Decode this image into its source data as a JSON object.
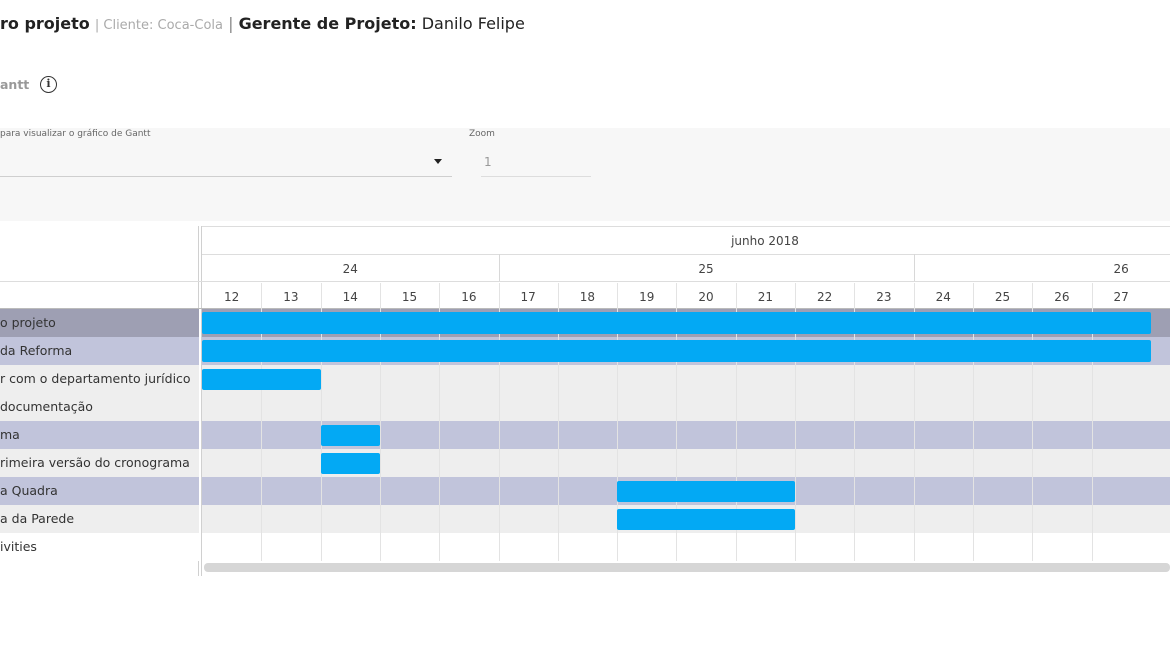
{
  "header": {
    "project": "ro projeto",
    "client_prefix": "Cliente: ",
    "client": "Coca-Cola",
    "manager_label": "Gerente de Projeto:",
    "manager": "Danilo Felipe"
  },
  "section": {
    "title": "antt",
    "info_icon": "info-icon"
  },
  "filters": {
    "select_label": "para visualizar o gráfico de Gantt",
    "select_value": "",
    "zoom_label": "Zoom",
    "zoom_value": "1"
  },
  "gantt": {
    "month": "junho 2018",
    "weeks": [
      "24",
      "25",
      "26"
    ],
    "days": [
      "12",
      "13",
      "14",
      "15",
      "16",
      "17",
      "18",
      "19",
      "20",
      "21",
      "22",
      "23",
      "24",
      "25",
      "26",
      "27"
    ],
    "rows": [
      {
        "label": "o projeto",
        "type": "summary"
      },
      {
        "label": "da Reforma",
        "type": "group"
      },
      {
        "label": "r com o departamento jurídico",
        "type": "task"
      },
      {
        "label": "documentação",
        "type": "task"
      },
      {
        "label": "ma",
        "type": "group"
      },
      {
        "label": "rimeira versão do cronograma",
        "type": "task"
      },
      {
        "label": "a Quadra",
        "type": "group"
      },
      {
        "label": "a da Parede",
        "type": "task"
      },
      {
        "label": "ivities",
        "type": "plain"
      }
    ],
    "bars": [
      {
        "row": 0,
        "start": "12",
        "end": "28"
      },
      {
        "row": 1,
        "start": "12",
        "end": "28"
      },
      {
        "row": 2,
        "start": "12",
        "end": "14"
      },
      {
        "row": 4,
        "start": "14",
        "end": "15"
      },
      {
        "row": 5,
        "start": "14",
        "end": "15"
      },
      {
        "row": 6,
        "start": "19",
        "end": "22"
      },
      {
        "row": 7,
        "start": "19",
        "end": "22"
      }
    ]
  },
  "colors": {
    "bar": "#03a9f4",
    "summary_row": "#9e9fb3",
    "group_row": "#c1c4db",
    "task_row": "#eeeeee",
    "plain_row": "#ffffff"
  }
}
